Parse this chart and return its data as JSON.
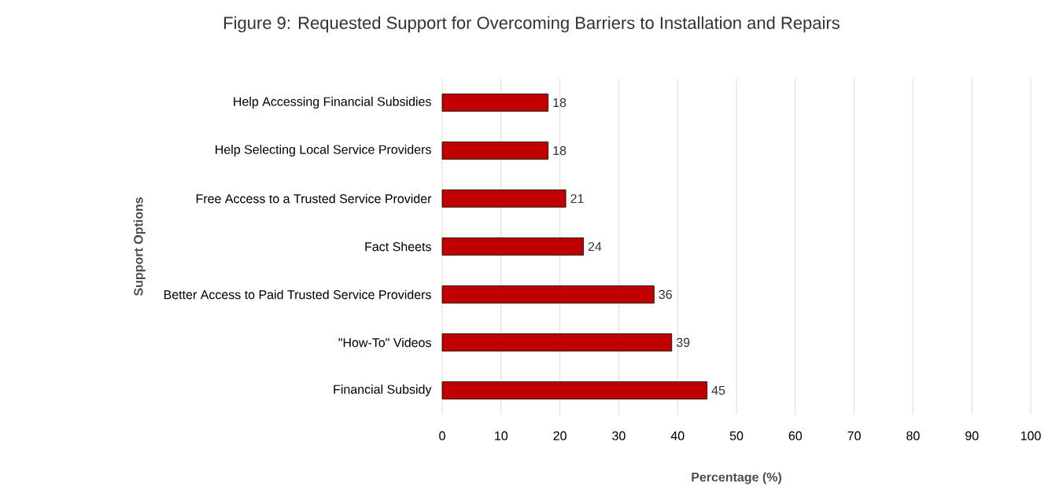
{
  "chart_data": {
    "type": "bar",
    "orientation": "horizontal",
    "title": "Figure 9: Requested Support  for Overcoming Barriers to Installation and Repairs",
    "xlabel": "Percentage (%)",
    "ylabel": "Support Options",
    "categories": [
      "Help Accessing Financial Subsidies",
      "Help Selecting Local Service Providers",
      "Free Access to a Trusted Service Provider",
      "Fact Sheets",
      "Better Access to Paid Trusted Service Providers",
      "\"How-To\" Videos",
      "Financial Subsidy"
    ],
    "values": [
      18,
      18,
      21,
      24,
      36,
      39,
      45
    ],
    "color": "#c00000",
    "xlim": [
      0,
      100
    ],
    "xticks": [
      0,
      10,
      20,
      30,
      40,
      50,
      60,
      70,
      80,
      90,
      100
    ],
    "grid": "x",
    "data_labels": true
  }
}
